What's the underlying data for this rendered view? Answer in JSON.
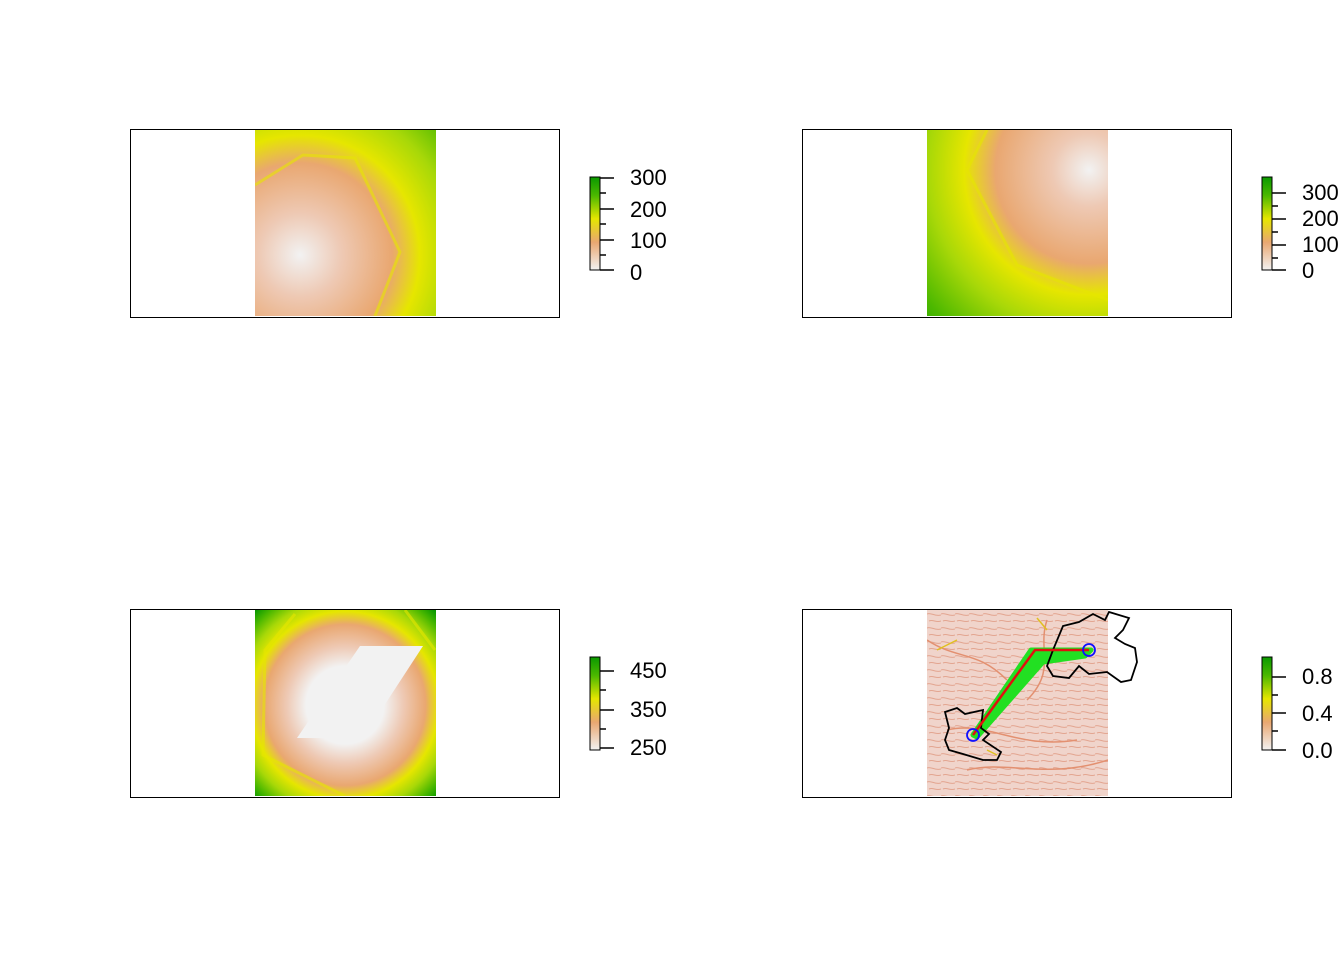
{
  "palette": [
    "#f2f2f2",
    "#eec9b4",
    "#e9a770",
    "#e0c020",
    "#e6e600",
    "#a8d808",
    "#4cb800",
    "#0a9900"
  ],
  "chart_data": [
    {
      "type": "heatmap",
      "title": "",
      "description_values": "accumulated cost surface from one source point",
      "source_point": "left-center",
      "legend": {
        "range": [
          0,
          320
        ],
        "ticks": [
          "300",
          "200",
          "100",
          "0"
        ],
        "tick_values": [
          300,
          200,
          100,
          0
        ]
      }
    },
    {
      "type": "heatmap",
      "title": "",
      "source_point": "upper-right",
      "legend": {
        "range": [
          0,
          370
        ],
        "ticks": [
          "300",
          "200",
          "100",
          "0"
        ],
        "tick_values": [
          300,
          200,
          100,
          0
        ]
      }
    },
    {
      "type": "heatmap",
      "title": "",
      "source_point": "central parallelogram (sum of costs)",
      "legend": {
        "range": [
          220,
          490
        ],
        "ticks": [
          "450",
          "350",
          "250"
        ],
        "tick_values": [
          450,
          350,
          250
        ]
      }
    },
    {
      "type": "heatmap",
      "title": "",
      "overlays": [
        "two polygon outlines (black)",
        "least-cost corridor (green)",
        "least-cost path (red)",
        "two endpoints (blue circles)"
      ],
      "legend": {
        "range": [
          0,
          0.9
        ],
        "ticks": [
          "0.8",
          "0.4",
          "0.0"
        ],
        "tick_values": [
          0.8,
          0.4,
          0.0
        ]
      }
    }
  ]
}
